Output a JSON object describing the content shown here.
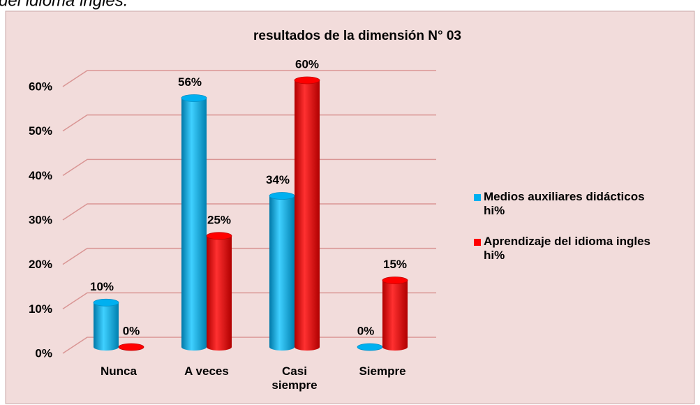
{
  "caption": "del idioma inglés.",
  "chart_data": {
    "type": "bar",
    "title": "resultados de la dimensión N° 03",
    "categories": [
      "Nunca",
      "A veces",
      "Casi siempre",
      "Siempre"
    ],
    "series": [
      {
        "name": "Medios auxiliares didácticos hi%",
        "color": "#00b0f0",
        "values": [
          10,
          56,
          34,
          0
        ],
        "value_labels": [
          "10%",
          "56%",
          "34%",
          "0%"
        ]
      },
      {
        "name": "Aprendizaje del idioma ingles hi%",
        "color": "#ff0000",
        "values": [
          0,
          25,
          60,
          15
        ],
        "value_labels": [
          "0%",
          "25%",
          "60%",
          "15%"
        ]
      }
    ],
    "ylim": [
      0,
      60
    ],
    "yticks": [
      {
        "value": 0,
        "label": "0%"
      },
      {
        "value": 10,
        "label": "10%"
      },
      {
        "value": 20,
        "label": "20%"
      },
      {
        "value": 30,
        "label": "30%"
      },
      {
        "value": 40,
        "label": "40%"
      },
      {
        "value": 50,
        "label": "50%"
      },
      {
        "value": 60,
        "label": "60%"
      }
    ],
    "grid": true,
    "legend": "right"
  }
}
